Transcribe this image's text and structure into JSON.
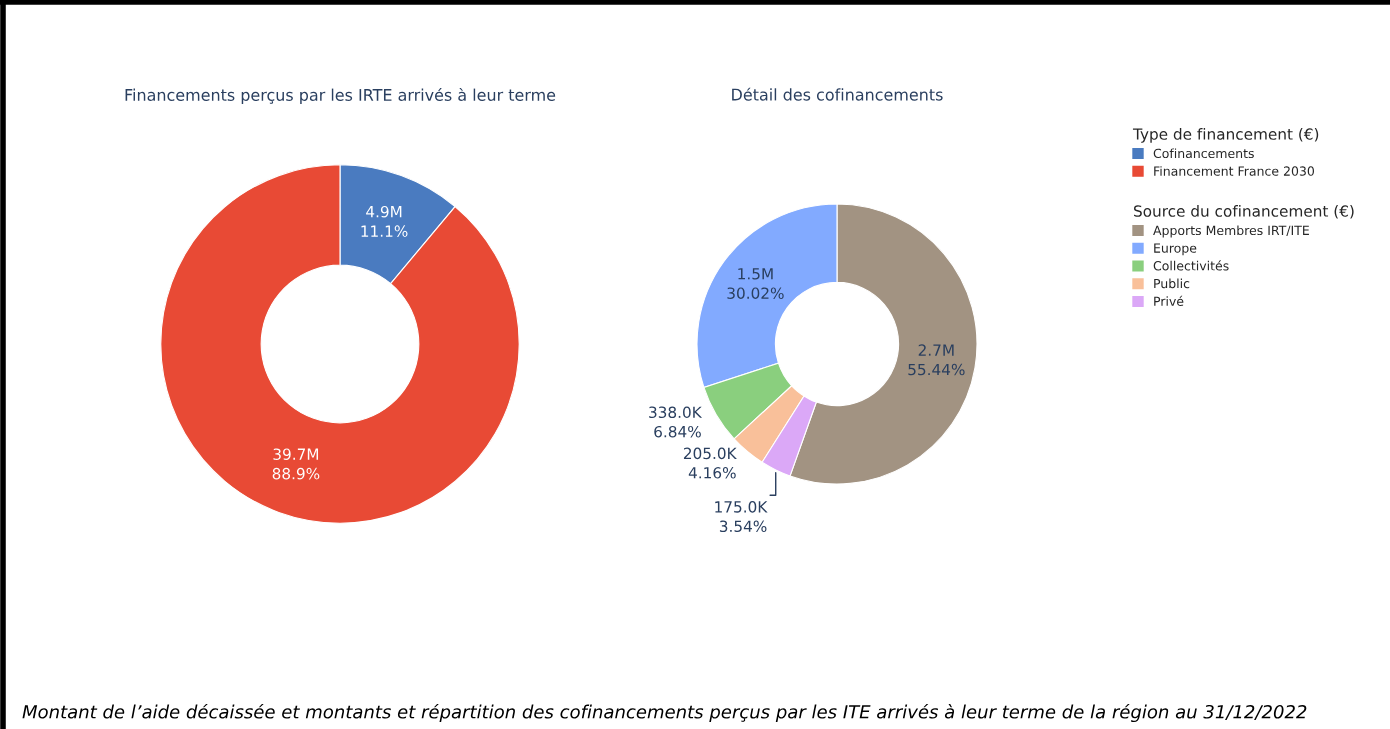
{
  "chart_data": [
    {
      "type": "donut",
      "title": "Financements perçus par les IRTE arrivés à leur terme",
      "legend_title": "Type de financement (€)",
      "legend": "right",
      "categories": [
        "Cofinancements",
        "Financement France 2030"
      ],
      "values": [
        11.1,
        88.9
      ],
      "colors": [
        "#4a7bc0",
        "#e84a35"
      ],
      "value_labels": [
        "4.9M\n11.1%",
        "39.7M\n88.9%"
      ],
      "annotations": [
        "Montant de l’aide décaissée et montants et répartition des cofinancements perçus par les ITE arrivés à leur terme de la région au 31/12/2022"
      ]
    },
    {
      "type": "donut",
      "title": "Détail des cofinancements",
      "legend_title": "Source du cofinancement (€)",
      "legend": "right",
      "categories": [
        "Apports Membres IRT/ITE",
        "Europe",
        "Collectivités",
        "Public",
        "Privé"
      ],
      "values": [
        55.44,
        30.02,
        6.84,
        4.16,
        3.54
      ],
      "colors": [
        "#a29382",
        "#82aaff",
        "#8acf7e",
        "#f9c09a",
        "#dba8f7"
      ],
      "value_labels": [
        "2.7M\n55.44%",
        "1.5M\n30.02%",
        "338.0K\n6.84%",
        "205.0K\n4.16%",
        "175.0K\n3.54%"
      ]
    }
  ]
}
